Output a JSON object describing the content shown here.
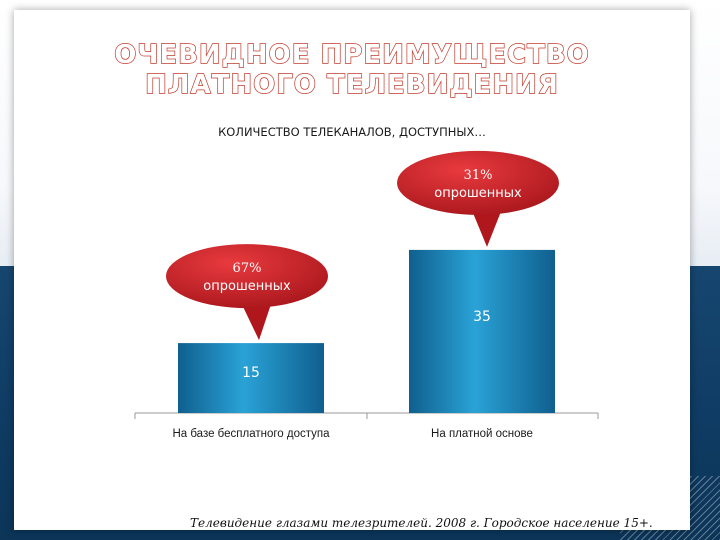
{
  "title": {
    "line1": "ОЧЕВИДНОЕ ПРЕИМУЩЕСТВО",
    "line2": "ПЛАТНОГО ТЕЛЕВИДЕНИЯ"
  },
  "subtitle": "КОЛИЧЕСТВО ТЕЛЕКАНАЛОВ, ДОСТУПНЫХ…",
  "footnote": "Телевидение глазами телезрителей. 2008 г. Городское население 15+.",
  "colors": {
    "bar": "#1d8bc0",
    "callout": "#d32226",
    "title_outline": "#c0392b",
    "band": "#0f3c64"
  },
  "chart_data": {
    "type": "bar",
    "categories": [
      "На базе бесплатного доступа",
      "На платной основе"
    ],
    "values": [
      15,
      35
    ],
    "value_labels": [
      "15",
      "35"
    ],
    "callouts": [
      {
        "category": "На базе бесплатного доступа",
        "pct": "67%",
        "text": "опрошенных"
      },
      {
        "category": "На платной основе",
        "pct": "31%",
        "text": "опрошенных"
      }
    ],
    "ylim": [
      0,
      50
    ],
    "grid": false,
    "legend": "none"
  }
}
